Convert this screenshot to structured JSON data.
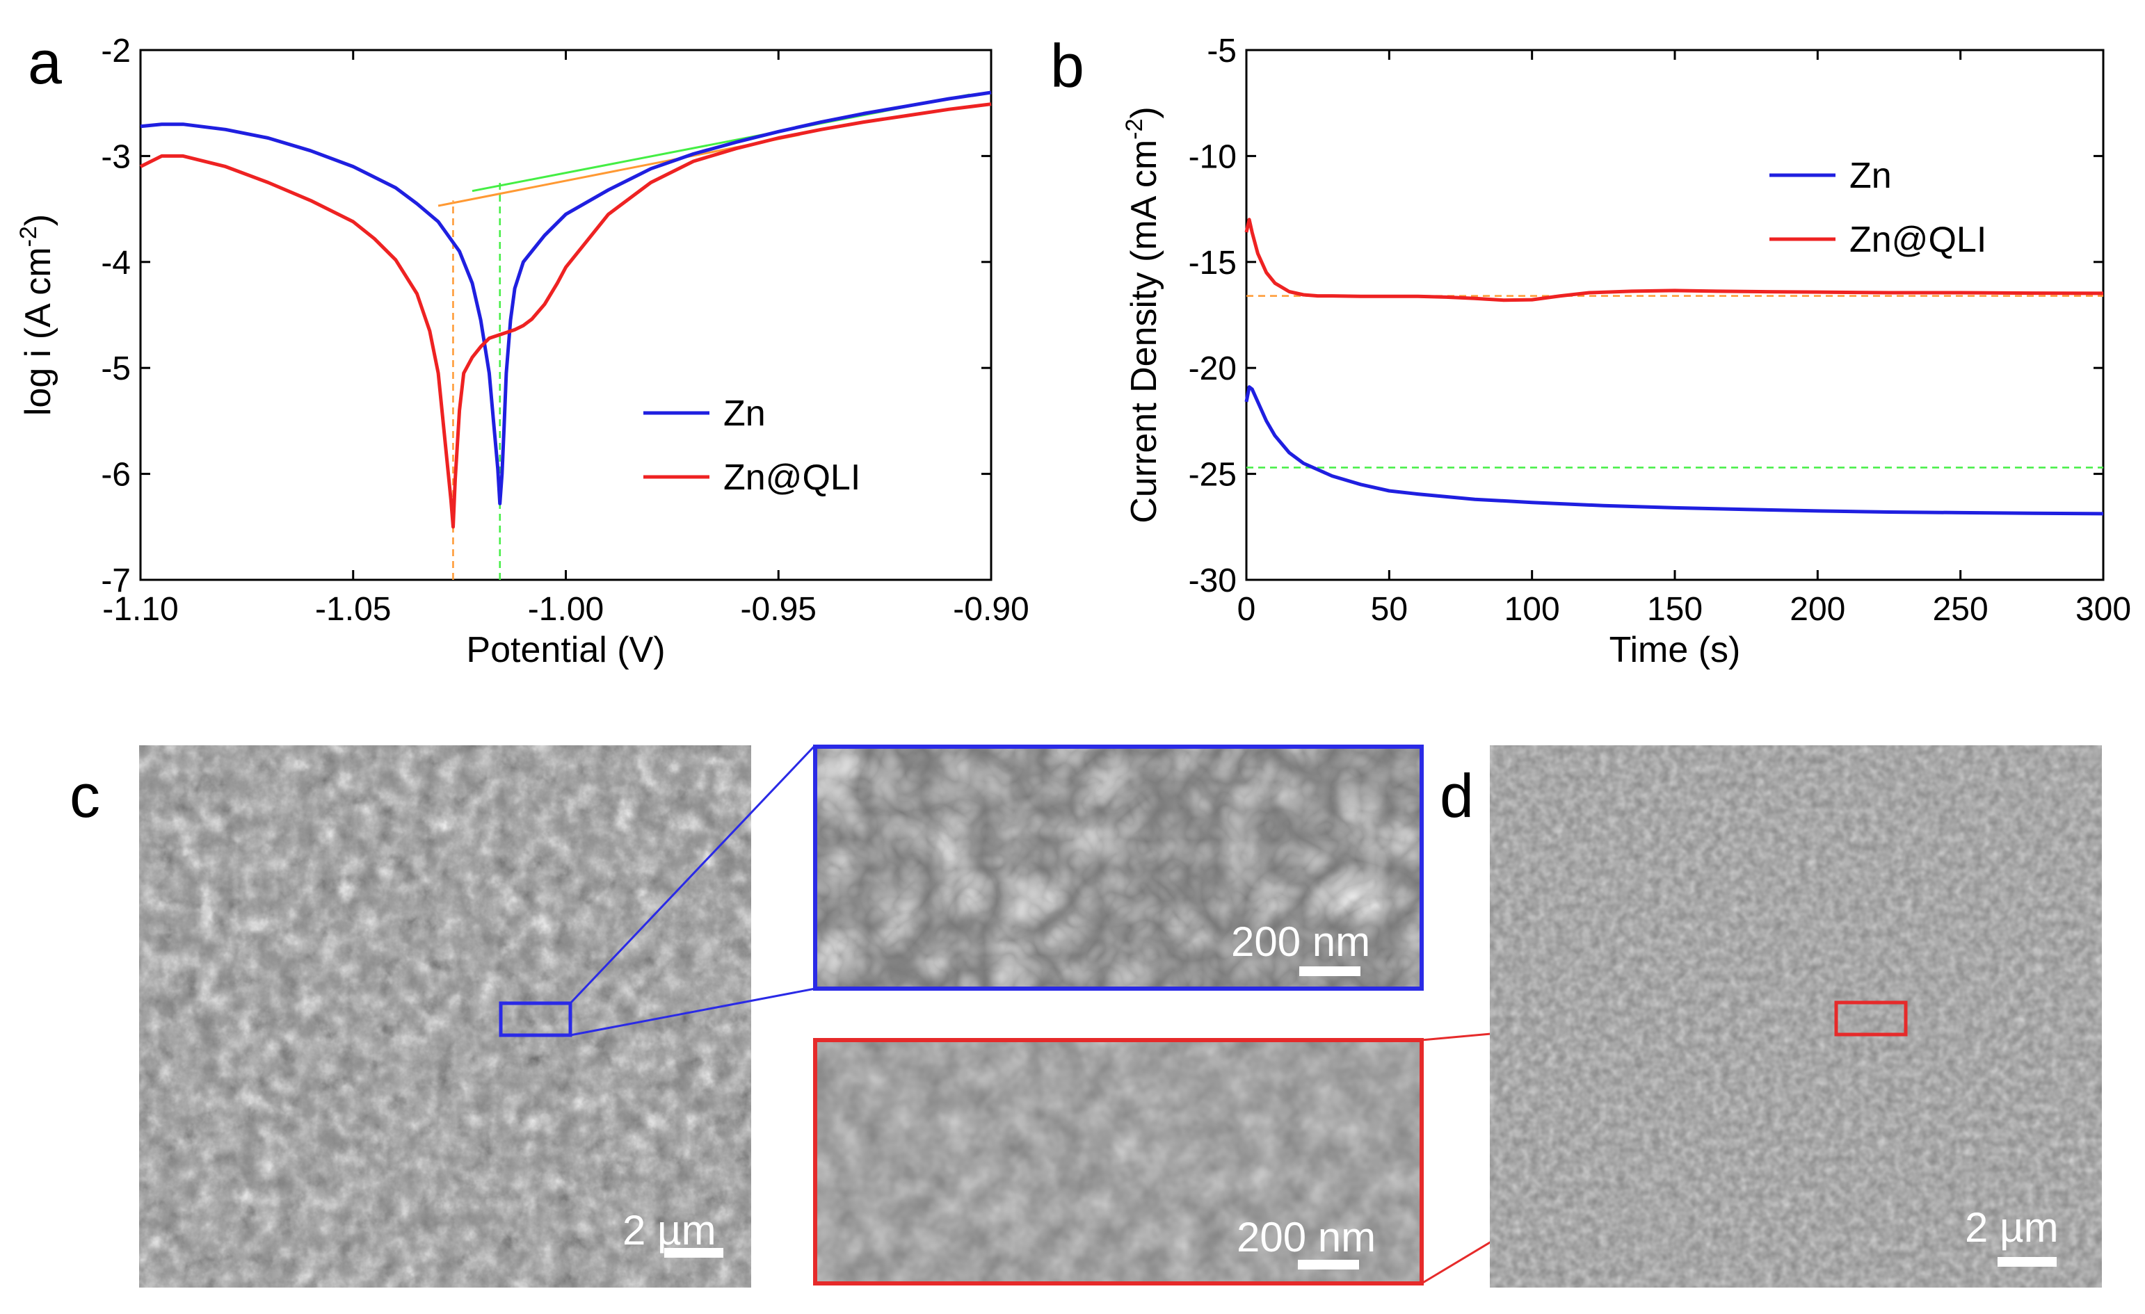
{
  "panel_labels": {
    "a": "a",
    "b": "b",
    "c": "c",
    "d": "d"
  },
  "colors": {
    "zn": "#1f1fe0",
    "znqli": "#ee2222",
    "fit_green": "#44ee44",
    "fit_orange": "#ff9933",
    "inset_blue": "#2a2ae6",
    "inset_red": "#e62a2a"
  },
  "chart_data": [
    {
      "type": "line",
      "panel": "a",
      "title": "",
      "xlabel": "Potential (V)",
      "ylabel": "log i (A cm<sup>-2</sup>)",
      "ylabel_parts": {
        "main": "log i (A cm",
        "sup": "-2",
        "end": ")"
      },
      "xlim": [
        -1.1,
        -0.9
      ],
      "ylim": [
        -7,
        -2
      ],
      "xticks": [
        -1.1,
        -1.05,
        -1.0,
        -0.95,
        -0.9
      ],
      "xtick_labels": [
        "-1.10",
        "-1.05",
        "-1.00",
        "-0.95",
        "-0.90"
      ],
      "yticks": [
        -7,
        -6,
        -5,
        -4,
        -3,
        -2
      ],
      "ytick_labels": [
        "-7",
        "-6",
        "-5",
        "-4",
        "-3",
        "-2"
      ],
      "legend": [
        "Zn",
        "Zn@QLI"
      ],
      "legend_position": "lower-right",
      "series": [
        {
          "name": "Zn",
          "color": "#1f1fe0",
          "x": [
            -1.1,
            -1.095,
            -1.09,
            -1.08,
            -1.07,
            -1.06,
            -1.05,
            -1.04,
            -1.035,
            -1.03,
            -1.025,
            -1.022,
            -1.02,
            -1.018,
            -1.017,
            -1.016,
            -1.0155,
            -1.015,
            -1.0145,
            -1.014,
            -1.013,
            -1.012,
            -1.01,
            -1.005,
            -1.0,
            -0.99,
            -0.98,
            -0.97,
            -0.96,
            -0.95,
            -0.94,
            -0.93,
            -0.92,
            -0.91,
            -0.9
          ],
          "y": [
            -2.72,
            -2.7,
            -2.7,
            -2.75,
            -2.83,
            -2.95,
            -3.1,
            -3.3,
            -3.45,
            -3.62,
            -3.9,
            -4.2,
            -4.55,
            -5.05,
            -5.5,
            -5.95,
            -6.28,
            -6.0,
            -5.55,
            -5.05,
            -4.55,
            -4.25,
            -4.0,
            -3.75,
            -3.55,
            -3.32,
            -3.12,
            -2.98,
            -2.87,
            -2.77,
            -2.68,
            -2.6,
            -2.53,
            -2.46,
            -2.4
          ]
        },
        {
          "name": "Zn@QLI",
          "color": "#ee2222",
          "x": [
            -1.1,
            -1.095,
            -1.09,
            -1.08,
            -1.07,
            -1.06,
            -1.05,
            -1.045,
            -1.04,
            -1.035,
            -1.032,
            -1.03,
            -1.029,
            -1.028,
            -1.027,
            -1.0265,
            -1.026,
            -1.025,
            -1.024,
            -1.022,
            -1.02,
            -1.018,
            -1.015,
            -1.012,
            -1.01,
            -1.008,
            -1.005,
            -1.002,
            -1.0,
            -0.995,
            -0.99,
            -0.98,
            -0.97,
            -0.96,
            -0.95,
            -0.94,
            -0.93,
            -0.92,
            -0.91,
            -0.9
          ],
          "y": [
            -3.1,
            -3.0,
            -3.0,
            -3.1,
            -3.25,
            -3.42,
            -3.62,
            -3.78,
            -3.98,
            -4.3,
            -4.65,
            -5.05,
            -5.45,
            -5.85,
            -6.25,
            -6.5,
            -6.05,
            -5.4,
            -5.05,
            -4.9,
            -4.8,
            -4.72,
            -4.68,
            -4.64,
            -4.6,
            -4.54,
            -4.4,
            -4.2,
            -4.05,
            -3.8,
            -3.55,
            -3.25,
            -3.05,
            -2.93,
            -2.83,
            -2.75,
            -2.68,
            -2.62,
            -2.56,
            -2.51
          ]
        }
      ],
      "fits": [
        {
          "name": "green tangent",
          "color": "#44ee44",
          "x": [
            -1.022,
            -0.905
          ],
          "y": [
            -3.33,
            -2.42
          ]
        },
        {
          "name": "orange tangent",
          "color": "#ff9933",
          "x": [
            -1.03,
            -0.945
          ],
          "y": [
            -3.47,
            -2.8
          ]
        }
      ],
      "guides": [
        {
          "orientation": "vertical",
          "color": "#44ee44",
          "value": -1.0155,
          "from": -7,
          "to": -3.25
        },
        {
          "orientation": "vertical",
          "color": "#ff9933",
          "value": -1.0265,
          "from": -7,
          "to": -3.42
        }
      ]
    },
    {
      "type": "line",
      "panel": "b",
      "title": "",
      "xlabel": "Time (s)",
      "ylabel_parts": {
        "main": "Current Density (mA cm",
        "sup": "-2",
        "end": ")"
      },
      "xlim": [
        0,
        300
      ],
      "ylim": [
        -30,
        -5
      ],
      "xticks": [
        0,
        50,
        100,
        150,
        200,
        250,
        300
      ],
      "xtick_labels": [
        "0",
        "50",
        "100",
        "150",
        "200",
        "250",
        "300"
      ],
      "yticks": [
        -30,
        -25,
        -20,
        -15,
        -10,
        -5
      ],
      "ytick_labels": [
        "-30",
        "-25",
        "-20",
        "-15",
        "-10",
        "-5"
      ],
      "legend": [
        "Zn",
        "Zn@QLI"
      ],
      "legend_position": "upper-right",
      "series": [
        {
          "name": "Zn",
          "color": "#1f1fe0",
          "x": [
            0,
            1,
            2,
            4,
            7,
            10,
            15,
            20,
            25,
            30,
            40,
            50,
            60,
            80,
            100,
            125,
            150,
            175,
            200,
            225,
            250,
            275,
            300
          ],
          "y": [
            -21.6,
            -20.9,
            -21.0,
            -21.6,
            -22.5,
            -23.2,
            -24.0,
            -24.5,
            -24.8,
            -25.1,
            -25.5,
            -25.8,
            -25.95,
            -26.2,
            -26.35,
            -26.5,
            -26.6,
            -26.68,
            -26.75,
            -26.8,
            -26.83,
            -26.86,
            -26.88
          ]
        },
        {
          "name": "Zn@QLI",
          "color": "#ee2222",
          "x": [
            0,
            1,
            2,
            4,
            7,
            10,
            15,
            20,
            25,
            30,
            40,
            50,
            60,
            70,
            80,
            90,
            100,
            110,
            120,
            135,
            150,
            165,
            180,
            200,
            225,
            250,
            275,
            300
          ],
          "y": [
            -13.6,
            -13.0,
            -13.6,
            -14.6,
            -15.5,
            -16.0,
            -16.4,
            -16.55,
            -16.6,
            -16.6,
            -16.62,
            -16.62,
            -16.62,
            -16.66,
            -16.72,
            -16.8,
            -16.78,
            -16.6,
            -16.45,
            -16.38,
            -16.35,
            -16.38,
            -16.4,
            -16.42,
            -16.45,
            -16.45,
            -16.47,
            -16.48
          ]
        }
      ],
      "guides": [
        {
          "orientation": "horizontal",
          "color": "#ff9933",
          "value": -16.6
        },
        {
          "orientation": "horizontal",
          "color": "#44ee44",
          "value": -24.7
        }
      ]
    }
  ],
  "images": {
    "c_scale": "2 µm",
    "c_inset_scale": "200 nm",
    "d_inset_scale": "200 nm",
    "d_scale": "2 µm"
  }
}
